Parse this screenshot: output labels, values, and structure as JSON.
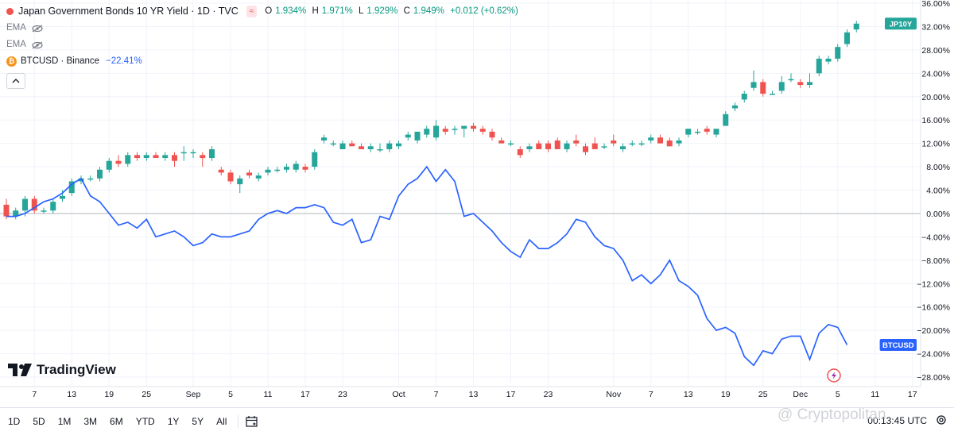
{
  "header": {
    "title": "Japan Government Bonds 10 YR Yield · 1D · TVC",
    "pill": "≈",
    "ohlc": {
      "open_label": "O",
      "open": "1.934%",
      "high_label": "H",
      "high": "1.971%",
      "low_label": "L",
      "low": "1.929%",
      "close_label": "C",
      "close": "1.949%",
      "change": "+0.012 (+0.62%)"
    },
    "ema1": "EMA",
    "ema2": "EMA",
    "compare_symbol": "BTCUSD · Binance",
    "compare_value": "−22.41%"
  },
  "logo": "TradingView",
  "bottom_bar": {
    "ranges": [
      "1D",
      "5D",
      "1M",
      "3M",
      "6M",
      "YTD",
      "1Y",
      "5Y",
      "All"
    ],
    "clock": "00:13:45 UTC"
  },
  "watermark": "@ Cryptopolitan",
  "colors": {
    "up": "#26a69a",
    "down": "#ef5350",
    "btc_line": "#2962ff",
    "grid": "#f0f3fa",
    "jp_badge": "#26a69a",
    "btc_badge": "#2962ff"
  },
  "chart_data": {
    "type": "candlestick+line",
    "y_axis": {
      "unit": "% change",
      "min": -28,
      "max": 36,
      "ticks": [
        "36.00%",
        "32.00%",
        "28.00%",
        "24.00%",
        "20.00%",
        "16.00%",
        "12.00%",
        "8.00%",
        "4.00%",
        "0.00%",
        "−4.00%",
        "−8.00%",
        "−12.00%",
        "−16.00%",
        "−20.00%",
        "−24.00%",
        "−28.00%"
      ],
      "tick_values": [
        36,
        32,
        28,
        24,
        20,
        16,
        12,
        8,
        4,
        0,
        -4,
        -8,
        -12,
        -16,
        -20,
        -24,
        -28
      ]
    },
    "x_axis": {
      "ticks": [
        {
          "i": 3,
          "label": "7"
        },
        {
          "i": 7,
          "label": "13"
        },
        {
          "i": 11,
          "label": "19"
        },
        {
          "i": 15,
          "label": "25"
        },
        {
          "i": 20,
          "label": "Sep"
        },
        {
          "i": 24,
          "label": "5"
        },
        {
          "i": 28,
          "label": "11"
        },
        {
          "i": 32,
          "label": "17"
        },
        {
          "i": 36,
          "label": "23"
        },
        {
          "i": 42,
          "label": "Oct"
        },
        {
          "i": 46,
          "label": "7"
        },
        {
          "i": 50,
          "label": "13"
        },
        {
          "i": 54,
          "label": "17"
        },
        {
          "i": 58,
          "label": "23"
        },
        {
          "i": 65,
          "label": "Nov"
        },
        {
          "i": 69,
          "label": "7"
        },
        {
          "i": 73,
          "label": "13"
        },
        {
          "i": 77,
          "label": "19"
        },
        {
          "i": 81,
          "label": "25"
        },
        {
          "i": 85,
          "label": "Dec"
        },
        {
          "i": 89,
          "label": "5"
        },
        {
          "i": 93,
          "label": "11"
        },
        {
          "i": 97,
          "label": "17"
        }
      ]
    },
    "series": [
      {
        "name": "JP10Y",
        "type": "candlestick",
        "ohlc_pct": [
          [
            1.5,
            2.5,
            -1.0,
            -0.5
          ],
          [
            -0.5,
            1.0,
            -1.0,
            0.5
          ],
          [
            0.5,
            3.0,
            -0.5,
            2.5
          ],
          [
            2.5,
            3.0,
            0.0,
            0.5
          ],
          [
            0.5,
            1.0,
            0.0,
            0.5
          ],
          [
            0.5,
            2.5,
            0.0,
            2.0
          ],
          [
            2.5,
            4.0,
            2.0,
            3.0
          ],
          [
            3.5,
            6.0,
            3.0,
            5.5
          ],
          [
            5.5,
            6.5,
            5.0,
            6.0
          ],
          [
            6.0,
            6.5,
            5.5,
            6.0
          ],
          [
            6.0,
            8.0,
            5.5,
            7.5
          ],
          [
            7.5,
            9.5,
            7.0,
            9.0
          ],
          [
            9.0,
            10.0,
            8.0,
            8.5
          ],
          [
            8.5,
            10.5,
            8.0,
            10.0
          ],
          [
            10.0,
            10.5,
            9.0,
            9.5
          ],
          [
            9.5,
            10.5,
            9.0,
            10.0
          ],
          [
            10.0,
            10.5,
            9.5,
            9.5
          ],
          [
            9.5,
            10.5,
            9.0,
            10.0
          ],
          [
            10.0,
            10.5,
            8.0,
            9.0
          ],
          [
            10.5,
            11.5,
            9.0,
            10.5
          ],
          [
            10.5,
            11.0,
            9.5,
            10.5
          ],
          [
            10.0,
            10.5,
            8.0,
            9.5
          ],
          [
            9.5,
            11.5,
            9.0,
            11.0
          ],
          [
            7.5,
            8.0,
            6.5,
            7.0
          ],
          [
            7.0,
            7.5,
            5.0,
            5.5
          ],
          [
            5.0,
            6.5,
            3.5,
            6.0
          ],
          [
            7.0,
            7.5,
            6.0,
            6.5
          ],
          [
            6.0,
            7.0,
            5.5,
            6.5
          ],
          [
            7.0,
            8.0,
            6.5,
            7.5
          ],
          [
            7.5,
            8.0,
            7.0,
            7.5
          ],
          [
            7.5,
            8.5,
            7.0,
            8.0
          ],
          [
            7.5,
            9.0,
            7.0,
            8.5
          ],
          [
            8.0,
            8.5,
            7.0,
            7.5
          ],
          [
            8.0,
            11.0,
            7.5,
            10.5
          ],
          [
            12.5,
            13.5,
            12.0,
            13.0
          ],
          [
            12.0,
            12.5,
            11.5,
            12.0
          ],
          [
            11.0,
            12.5,
            11.0,
            12.0
          ],
          [
            12.0,
            12.5,
            11.5,
            11.5
          ],
          [
            11.5,
            12.0,
            11.0,
            11.0
          ],
          [
            11.0,
            12.0,
            10.5,
            11.5
          ],
          [
            11.0,
            12.0,
            10.5,
            11.0
          ],
          [
            11.0,
            12.5,
            10.5,
            12.0
          ],
          [
            11.5,
            12.5,
            11.0,
            12.0
          ],
          [
            13.0,
            14.0,
            12.5,
            13.5
          ],
          [
            12.5,
            14.0,
            12.0,
            14.0
          ],
          [
            13.5,
            15.0,
            13.0,
            14.5
          ],
          [
            13.0,
            16.0,
            12.5,
            15.0
          ],
          [
            14.5,
            15.0,
            13.5,
            14.0
          ],
          [
            14.5,
            15.0,
            13.5,
            14.5
          ],
          [
            14.5,
            15.0,
            13.0,
            15.0
          ],
          [
            15.0,
            15.5,
            14.0,
            14.5
          ],
          [
            14.5,
            15.0,
            13.5,
            14.0
          ],
          [
            14.0,
            14.5,
            12.5,
            13.0
          ],
          [
            12.5,
            13.0,
            12.0,
            12.0
          ],
          [
            12.0,
            12.5,
            11.5,
            12.0
          ],
          [
            11.0,
            11.5,
            9.5,
            10.0
          ],
          [
            11.0,
            12.0,
            10.5,
            11.5
          ],
          [
            12.0,
            12.5,
            11.0,
            11.0
          ],
          [
            12.0,
            12.5,
            10.5,
            11.0
          ],
          [
            12.5,
            13.0,
            11.5,
            11.0
          ],
          [
            11.0,
            12.5,
            10.5,
            12.0
          ],
          [
            12.5,
            13.5,
            11.5,
            12.0
          ],
          [
            11.5,
            12.0,
            10.0,
            10.5
          ],
          [
            12.0,
            13.0,
            11.0,
            11.0
          ],
          [
            11.5,
            12.0,
            11.0,
            11.5
          ],
          [
            12.5,
            13.5,
            11.5,
            12.0
          ],
          [
            11.0,
            12.0,
            10.5,
            11.5
          ],
          [
            12.0,
            12.5,
            11.5,
            12.0
          ],
          [
            12.0,
            12.5,
            11.5,
            12.0
          ],
          [
            12.5,
            13.5,
            12.0,
            13.0
          ],
          [
            13.0,
            13.5,
            12.0,
            12.0
          ],
          [
            12.5,
            13.0,
            11.5,
            11.5
          ],
          [
            12.0,
            13.0,
            11.5,
            12.5
          ],
          [
            13.5,
            14.5,
            13.0,
            14.5
          ],
          [
            14.0,
            14.5,
            13.5,
            14.0
          ],
          [
            14.5,
            15.0,
            13.5,
            14.0
          ],
          [
            13.5,
            14.5,
            13.0,
            14.5
          ],
          [
            15.0,
            17.5,
            15.0,
            17.0
          ],
          [
            18.0,
            19.0,
            17.5,
            18.5
          ],
          [
            19.5,
            21.0,
            19.0,
            20.5
          ],
          [
            21.5,
            24.5,
            21.0,
            22.5
          ],
          [
            22.5,
            23.0,
            20.0,
            20.5
          ],
          [
            20.5,
            21.0,
            20.5,
            20.5
          ],
          [
            21.0,
            23.5,
            20.5,
            22.5
          ],
          [
            23.0,
            24.0,
            22.5,
            23.0
          ],
          [
            22.5,
            23.0,
            21.5,
            22.0
          ],
          [
            22.0,
            24.0,
            21.5,
            22.5
          ],
          [
            24.0,
            27.0,
            23.5,
            26.5
          ],
          [
            26.0,
            27.0,
            25.5,
            26.5
          ],
          [
            26.5,
            29.0,
            26.0,
            28.5
          ],
          [
            29.0,
            31.5,
            28.5,
            31.0
          ],
          [
            31.5,
            33.0,
            31.0,
            32.5
          ]
        ]
      },
      {
        "name": "BTCUSD",
        "type": "line",
        "values": [
          -0.5,
          -0.5,
          0.0,
          1.0,
          2.0,
          2.5,
          3.5,
          5.0,
          6.0,
          3.0,
          2.0,
          0.0,
          -2.0,
          -1.5,
          -2.5,
          -1.0,
          -4.0,
          -3.5,
          -3.0,
          -4.0,
          -5.5,
          -5.0,
          -3.5,
          -4.0,
          -4.0,
          -3.5,
          -3.0,
          -1.0,
          0.0,
          0.5,
          0.0,
          1.0,
          1.0,
          1.5,
          1.0,
          -1.5,
          -2.0,
          -1.0,
          -5.0,
          -4.5,
          -0.5,
          -1.0,
          3.0,
          5.0,
          6.0,
          8.0,
          5.5,
          7.5,
          5.5,
          -0.5,
          0.0,
          -1.5,
          -3.0,
          -5.0,
          -6.5,
          -7.5,
          -4.5,
          -6.0,
          -6.0,
          -5.0,
          -3.5,
          -1.0,
          -1.5,
          -4.0,
          -5.5,
          -6.0,
          -8.0,
          -11.5,
          -10.5,
          -12.0,
          -10.5,
          -8.0,
          -11.5,
          -12.5,
          -14.0,
          -18.0,
          -20.0,
          -19.5,
          -20.5,
          -24.5,
          -26.0,
          -23.5,
          -24.0,
          -21.5,
          -21.0,
          -21.0,
          -25.0,
          -20.5,
          -19.0,
          -19.5,
          -22.5
        ]
      }
    ],
    "last_value_badges": [
      {
        "series": "JP10Y",
        "label": "JP10Y",
        "value": 32.5
      },
      {
        "series": "BTCUSD",
        "label": "BTCUSD",
        "value": -22.5
      }
    ],
    "zero_line": true,
    "grid": true
  }
}
